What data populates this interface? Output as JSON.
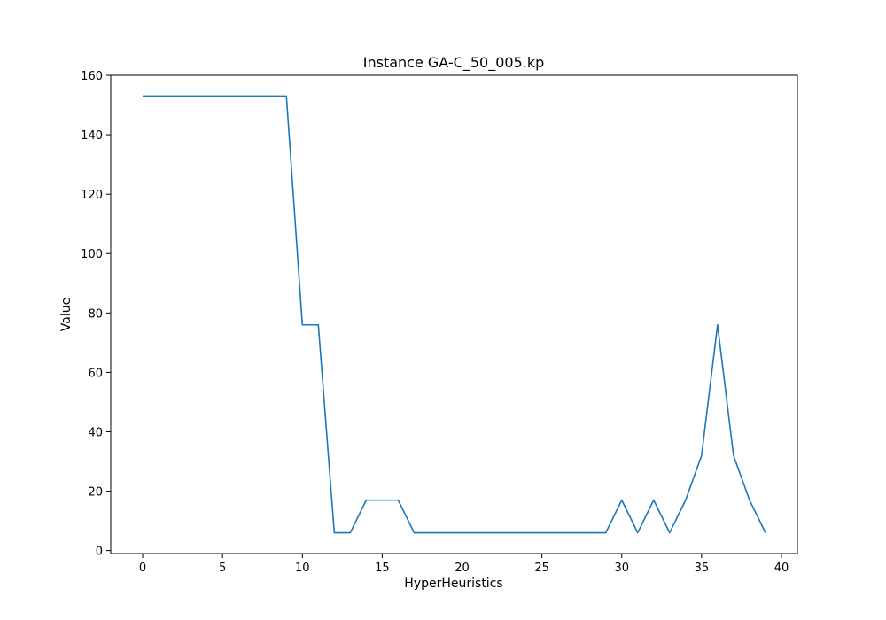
{
  "chart_data": {
    "type": "line",
    "title": "Instance GA-C_50_005.kp",
    "xlabel": "HyperHeuristics",
    "ylabel": "Value",
    "xlim": [
      -2,
      41
    ],
    "ylim": [
      -1,
      160
    ],
    "xticks": [
      0,
      5,
      10,
      15,
      20,
      25,
      30,
      35,
      40
    ],
    "yticks": [
      0,
      20,
      40,
      60,
      80,
      100,
      120,
      140,
      160
    ],
    "grid": false,
    "line_color": "#1f77b4",
    "x": [
      0,
      1,
      2,
      3,
      4,
      5,
      6,
      7,
      8,
      9,
      10,
      11,
      12,
      13,
      14,
      15,
      16,
      17,
      18,
      19,
      20,
      21,
      22,
      23,
      24,
      25,
      26,
      27,
      28,
      29,
      30,
      31,
      32,
      33,
      34,
      35,
      36,
      37,
      38,
      39
    ],
    "values": [
      153,
      153,
      153,
      153,
      153,
      153,
      153,
      153,
      153,
      153,
      76,
      76,
      6,
      6,
      17,
      17,
      17,
      6,
      6,
      6,
      6,
      6,
      6,
      6,
      6,
      6,
      6,
      6,
      6,
      6,
      17,
      6,
      17,
      6,
      17,
      32,
      76,
      32,
      17,
      6
    ]
  }
}
